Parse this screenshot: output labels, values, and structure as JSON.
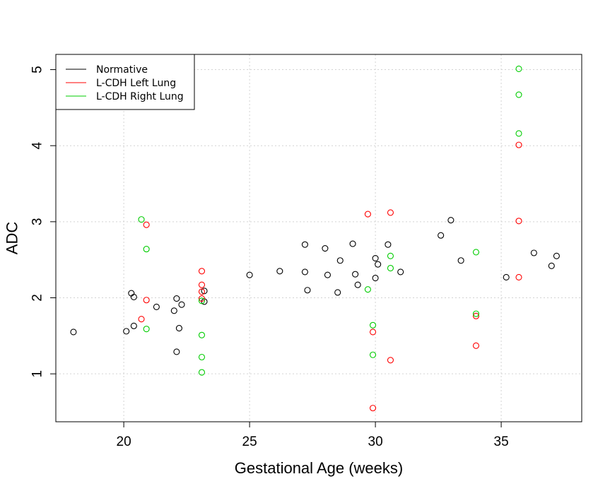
{
  "chart_data": {
    "type": "scatter",
    "title": "",
    "xlabel": "Gestational Age (weeks)",
    "ylabel": "ADC",
    "xlim": [
      17.3,
      38.2
    ],
    "ylim": [
      0.37,
      5.2
    ],
    "xticks": [
      20,
      25,
      30,
      35
    ],
    "yticks": [
      1,
      2,
      3,
      4,
      5
    ],
    "grid": true,
    "legend_position": "top-left",
    "series": [
      {
        "name": "Normative",
        "color": "#000000",
        "points": [
          [
            18.0,
            1.55
          ],
          [
            20.1,
            1.56
          ],
          [
            20.3,
            2.06
          ],
          [
            20.4,
            2.01
          ],
          [
            20.4,
            1.63
          ],
          [
            21.3,
            1.88
          ],
          [
            22.0,
            1.83
          ],
          [
            22.1,
            1.99
          ],
          [
            22.1,
            1.29
          ],
          [
            22.2,
            1.6
          ],
          [
            22.3,
            1.91
          ],
          [
            23.2,
            2.09
          ],
          [
            23.2,
            1.95
          ],
          [
            25.0,
            2.3
          ],
          [
            26.2,
            2.35
          ],
          [
            27.2,
            2.7
          ],
          [
            27.2,
            2.34
          ],
          [
            27.3,
            2.1
          ],
          [
            28.0,
            2.65
          ],
          [
            28.1,
            2.3
          ],
          [
            28.5,
            2.07
          ],
          [
            28.6,
            2.49
          ],
          [
            29.1,
            2.71
          ],
          [
            29.2,
            2.31
          ],
          [
            29.3,
            2.17
          ],
          [
            30.0,
            2.52
          ],
          [
            30.0,
            2.26
          ],
          [
            30.1,
            2.44
          ],
          [
            30.5,
            2.7
          ],
          [
            31.0,
            2.34
          ],
          [
            32.6,
            2.82
          ],
          [
            33.0,
            3.02
          ],
          [
            33.4,
            2.49
          ],
          [
            35.2,
            2.27
          ],
          [
            36.3,
            2.59
          ],
          [
            37.0,
            2.42
          ],
          [
            37.2,
            2.55
          ]
        ]
      },
      {
        "name": "L-CDH Left Lung",
        "color": "#ff0000",
        "points": [
          [
            20.7,
            1.72
          ],
          [
            20.9,
            2.96
          ],
          [
            20.9,
            1.97
          ],
          [
            23.1,
            2.35
          ],
          [
            23.1,
            2.17
          ],
          [
            23.1,
            2.08
          ],
          [
            23.1,
            1.99
          ],
          [
            29.7,
            3.1
          ],
          [
            29.9,
            1.55
          ],
          [
            29.9,
            0.55
          ],
          [
            30.6,
            3.12
          ],
          [
            30.6,
            1.18
          ],
          [
            34.0,
            1.76
          ],
          [
            34.0,
            1.37
          ],
          [
            35.7,
            4.01
          ],
          [
            35.7,
            3.01
          ],
          [
            35.7,
            2.27
          ]
        ]
      },
      {
        "name": "L-CDH Right Lung",
        "color": "#00cd00",
        "points": [
          [
            20.7,
            3.03
          ],
          [
            20.9,
            2.64
          ],
          [
            20.9,
            1.59
          ],
          [
            23.1,
            1.96
          ],
          [
            23.1,
            1.51
          ],
          [
            23.1,
            1.22
          ],
          [
            23.1,
            1.02
          ],
          [
            29.7,
            2.11
          ],
          [
            29.9,
            1.64
          ],
          [
            29.9,
            1.25
          ],
          [
            30.6,
            2.55
          ],
          [
            30.6,
            2.39
          ],
          [
            34.0,
            2.6
          ],
          [
            34.0,
            1.79
          ],
          [
            35.7,
            5.01
          ],
          [
            35.7,
            4.67
          ],
          [
            35.7,
            4.16
          ]
        ]
      }
    ]
  }
}
